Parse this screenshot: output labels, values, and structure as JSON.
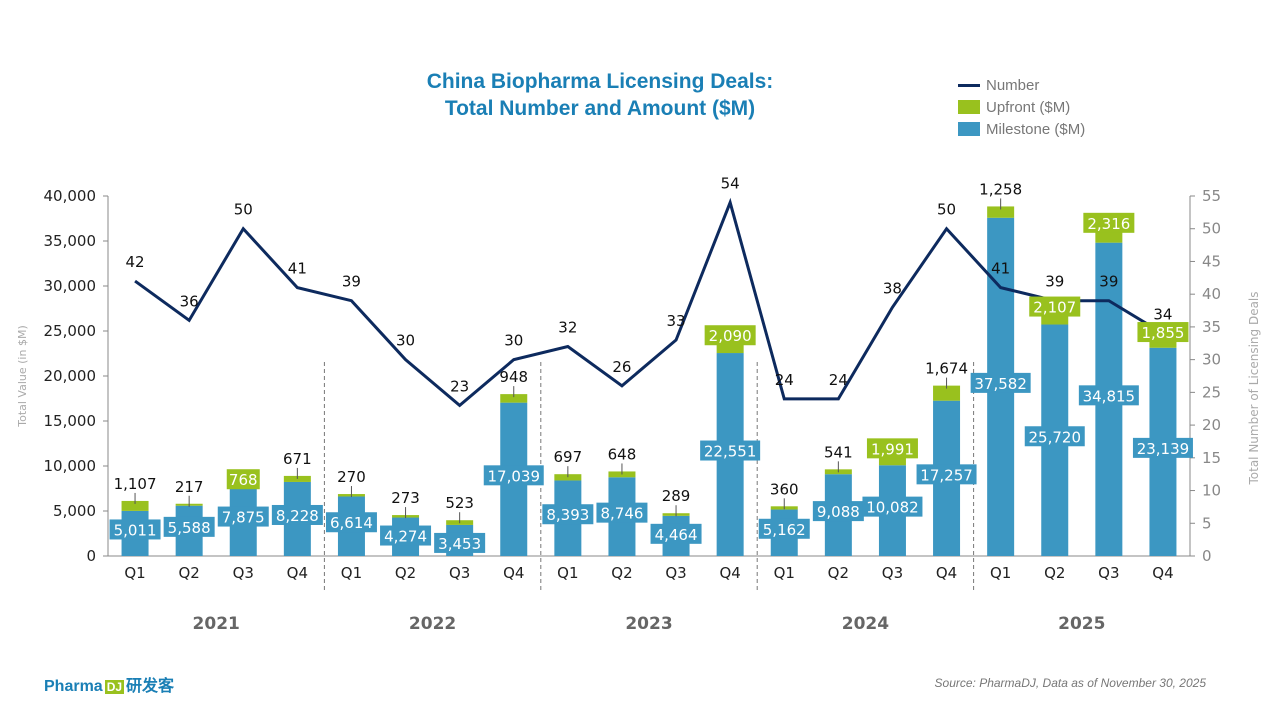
{
  "chart_data": {
    "type": "bar",
    "title_line1": "China Biopharma Licensing Deals:",
    "title_line2": "Total Number and Amount ($M)",
    "ylabel": "Total Value (in $M)",
    "y2label": "Total Number of Licensing Deals",
    "ylim": [
      0,
      40000
    ],
    "y2lim": [
      0,
      55
    ],
    "yticks": [
      "0",
      "5,000",
      "10,000",
      "15,000",
      "20,000",
      "25,000",
      "30,000",
      "35,000",
      "40,000"
    ],
    "y2ticks": [
      "0",
      "5",
      "10",
      "15",
      "20",
      "25",
      "30",
      "35",
      "40",
      "45",
      "50",
      "55"
    ],
    "categories": [
      "Q1",
      "Q2",
      "Q3",
      "Q4",
      "Q1",
      "Q2",
      "Q3",
      "Q4",
      "Q1",
      "Q2",
      "Q3",
      "Q4",
      "Q1",
      "Q2",
      "Q3",
      "Q4",
      "Q1",
      "Q2",
      "Q3",
      "Q4"
    ],
    "years": [
      "2021",
      "2022",
      "2023",
      "2024",
      "2025"
    ],
    "series": [
      {
        "name": "Milestone ($M)",
        "type": "bar",
        "color": "#3c97c2",
        "values": [
          5011,
          5588,
          7875,
          8228,
          6614,
          4274,
          3453,
          17039,
          8393,
          8746,
          4464,
          22551,
          5162,
          9088,
          10082,
          17257,
          37582,
          25720,
          34815,
          23139
        ]
      },
      {
        "name": "Upfront ($M)",
        "type": "bar",
        "color": "#99c11e",
        "values": [
          1107,
          217,
          768,
          671,
          270,
          273,
          523,
          948,
          697,
          648,
          289,
          2090,
          360,
          541,
          1991,
          1674,
          1258,
          2107,
          2316,
          1855
        ]
      },
      {
        "name": "Number",
        "type": "line",
        "axis": "right",
        "color": "#0d2a5e",
        "values": [
          42,
          36,
          50,
          41,
          39,
          30,
          23,
          30,
          32,
          26,
          33,
          54,
          24,
          24,
          38,
          50,
          41,
          39,
          39,
          34
        ]
      }
    ],
    "legend_position": "top-right",
    "grid": false
  },
  "legend": [
    "Number",
    "Upfront ($M)",
    "Milestone ($M)"
  ],
  "footer": {
    "logo": "Pharma",
    "logo_cn": "研发客",
    "logo_mark": "DJ",
    "source": "Source: PharmaDJ, Data as of November 30, 2025"
  }
}
